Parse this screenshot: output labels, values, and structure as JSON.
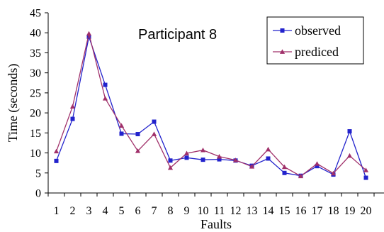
{
  "chart_data": {
    "type": "line",
    "title": "Participant 8",
    "xlabel": "Faults",
    "ylabel": "Time (seconds)",
    "ylim": [
      0,
      45
    ],
    "yticks": [
      0,
      5,
      10,
      15,
      20,
      25,
      30,
      35,
      40,
      45
    ],
    "categories": [
      "1",
      "2",
      "3",
      "4",
      "5",
      "6",
      "7",
      "8",
      "9",
      "10",
      "11",
      "12",
      "13",
      "14",
      "15",
      "16",
      "17",
      "18",
      "19",
      "20"
    ],
    "legend_position": "top-right",
    "grid": false,
    "series": [
      {
        "name": "observed",
        "color": "#2222cc",
        "marker": "square",
        "values": [
          8.0,
          18.5,
          39.0,
          27.0,
          14.8,
          14.7,
          17.8,
          8.1,
          8.8,
          8.3,
          8.4,
          8.1,
          6.8,
          8.6,
          5.0,
          4.3,
          6.7,
          4.6,
          15.4,
          3.8
        ]
      },
      {
        "name": "prediced",
        "color": "#a0306a",
        "marker": "triangle",
        "values": [
          10.4,
          21.6,
          39.8,
          23.6,
          16.8,
          10.5,
          14.7,
          6.3,
          9.9,
          10.7,
          9.1,
          8.2,
          6.6,
          10.9,
          6.5,
          4.2,
          7.3,
          4.9,
          9.3,
          5.7
        ]
      }
    ]
  }
}
